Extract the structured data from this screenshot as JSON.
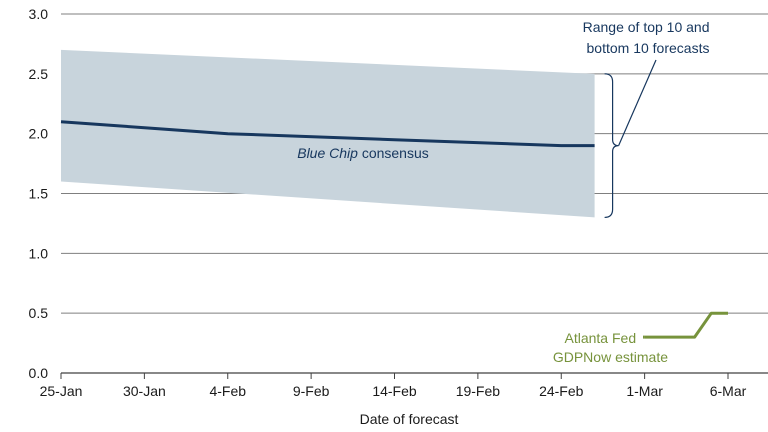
{
  "chart_data": {
    "type": "line",
    "title": "",
    "xlabel": "Date of forecast",
    "ylabel": "",
    "x_ticks": [
      "25-Jan",
      "30-Jan",
      "4-Feb",
      "9-Feb",
      "14-Feb",
      "19-Feb",
      "24-Feb",
      "1-Mar",
      "6-Mar"
    ],
    "y_ticks": [
      "0.0",
      "0.5",
      "1.0",
      "1.5",
      "2.0",
      "2.5",
      "3.0"
    ],
    "ylim": [
      0,
      3.0
    ],
    "xlim": [
      "25-Jan",
      "6-Mar"
    ],
    "grid": "horizontal",
    "band": {
      "label": "Range of top 10 and bottom 10 forecasts",
      "label_lines": [
        "Range of top 10 and",
        "bottom 10 forecasts"
      ],
      "x": [
        "25-Jan",
        "26-Feb"
      ],
      "upper": [
        2.7,
        2.5
      ],
      "lower": [
        1.6,
        1.3
      ],
      "color": "#c8d4dc"
    },
    "series": [
      {
        "name": "Blue Chip consensus",
        "label_italic": "Blue Chip",
        "label_rest": " consensus",
        "color": "#17375e",
        "x": [
          "25-Jan",
          "4-Feb",
          "14-Feb",
          "24-Feb",
          "26-Feb"
        ],
        "values": [
          2.1,
          2.0,
          1.95,
          1.9,
          1.9
        ]
      },
      {
        "name": "Atlanta Fed GDPNow estimate",
        "label_lines": [
          "Atlanta Fed",
          "GDPNow estimate"
        ],
        "color": "#77933c",
        "x": [
          "1-Mar",
          "3-Mar",
          "4-Mar",
          "5-Mar",
          "6-Mar"
        ],
        "values": [
          0.3,
          0.3,
          0.3,
          0.5,
          0.5
        ]
      }
    ]
  }
}
